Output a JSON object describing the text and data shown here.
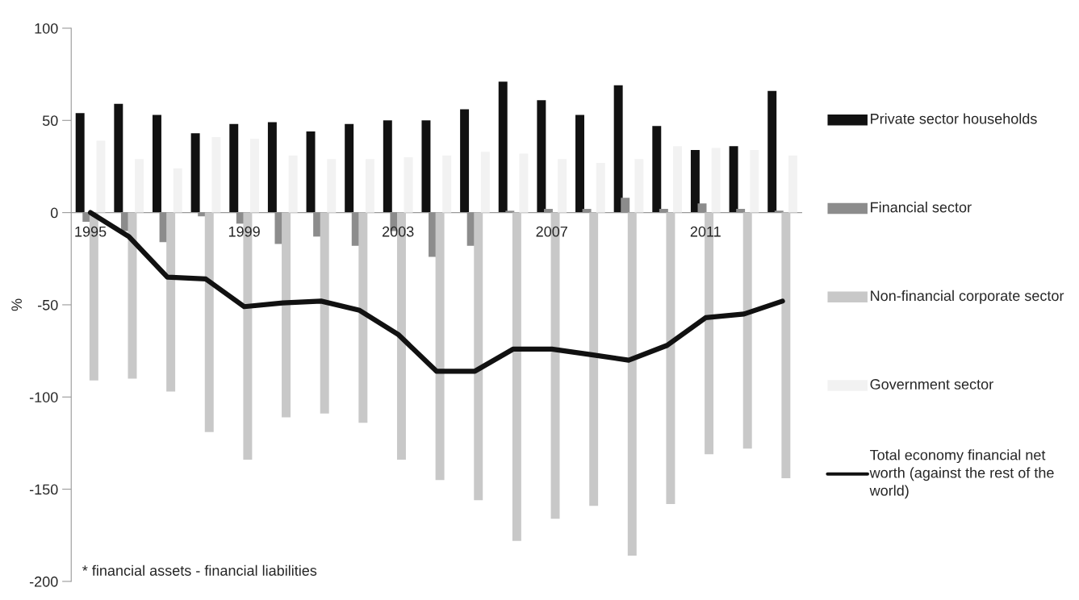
{
  "chart_data": {
    "type": "bar",
    "categories": [
      "1995",
      null,
      null,
      null,
      "1999",
      null,
      null,
      null,
      "2003",
      null,
      null,
      null,
      "2007",
      null,
      null,
      null,
      "2011",
      null,
      null
    ],
    "series": [
      {
        "name": "Private sector households",
        "color": "#111111",
        "values": [
          54,
          59,
          53,
          43,
          48,
          49,
          44,
          48,
          50,
          50,
          56,
          71,
          61,
          53,
          69,
          47,
          34,
          36,
          66
        ]
      },
      {
        "name": "Financial sector",
        "color": "#8c8c8c",
        "values": [
          -5,
          -10,
          -16,
          -2,
          -6,
          -17,
          -13,
          -18,
          -10,
          -24,
          -18,
          1,
          2,
          2,
          8,
          2,
          5,
          2,
          1
        ]
      },
      {
        "name": "Non-financial corporate sector",
        "color": "#c8c8c8",
        "values": [
          -91,
          -90,
          -97,
          -119,
          -134,
          -111,
          -109,
          -114,
          -134,
          -145,
          -156,
          -178,
          -166,
          -159,
          -186,
          -158,
          -131,
          -128,
          -144
        ]
      },
      {
        "name": "Government sector",
        "color": "#f2f2f2",
        "values": [
          39,
          29,
          24,
          41,
          40,
          31,
          29,
          29,
          30,
          31,
          33,
          32,
          29,
          27,
          29,
          36,
          35,
          34,
          31
        ]
      },
      {
        "name": "Total economy financial net worth (against the rest of the world)",
        "type": "line",
        "color": "#111111",
        "values": [
          0,
          -13,
          -35,
          -36,
          -51,
          -49,
          -48,
          -53,
          -66,
          -86,
          -86,
          -74,
          -74,
          -77,
          -80,
          -72,
          -57,
          -55,
          -48
        ]
      }
    ],
    "ylabel": "%",
    "ylim": [
      -200,
      100
    ],
    "yticks": [
      -200,
      -150,
      -100,
      -50,
      0,
      50,
      100
    ],
    "grid": false,
    "legend": "right",
    "annotations": [
      "* financial assets - financial liabilities"
    ]
  }
}
